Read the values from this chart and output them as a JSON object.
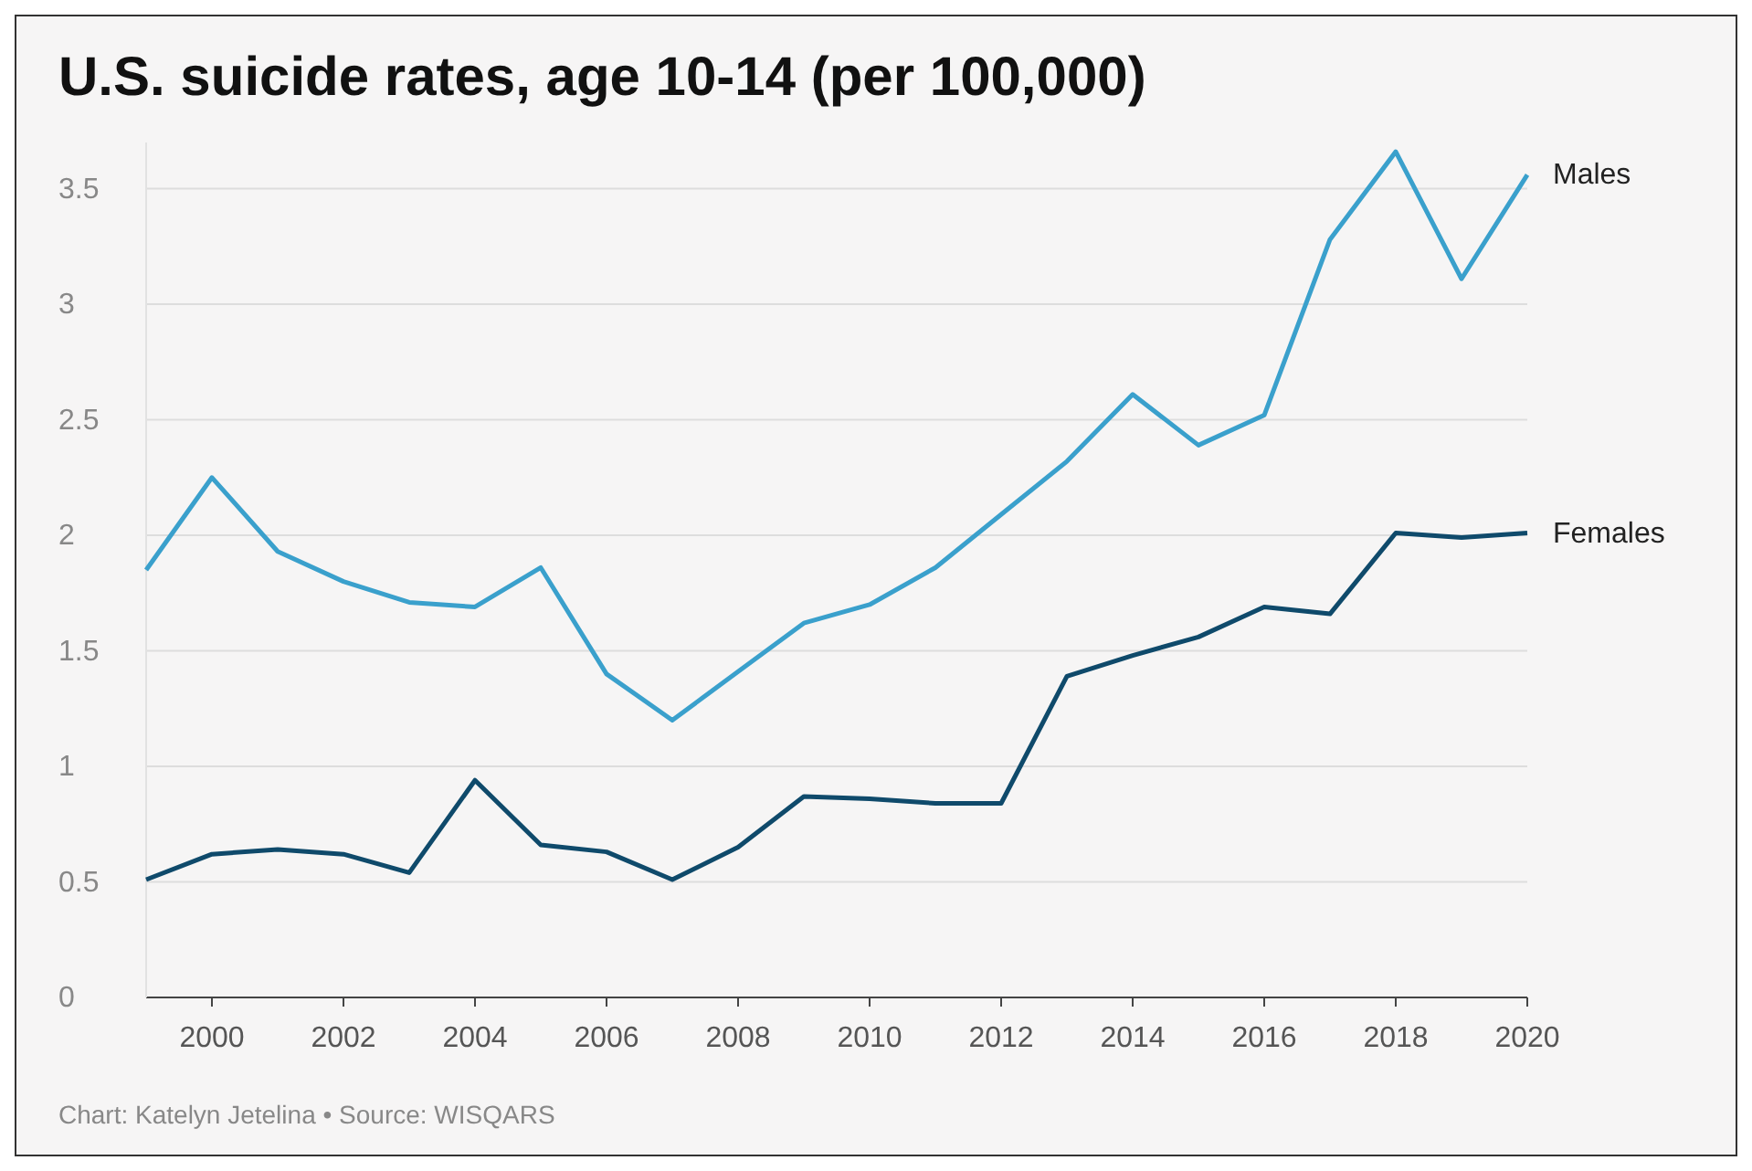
{
  "chart_data": {
    "type": "line",
    "title": "U.S. suicide rates, age 10-14 (per 100,000)",
    "x": [
      1999,
      2000,
      2001,
      2002,
      2003,
      2004,
      2005,
      2006,
      2007,
      2008,
      2009,
      2010,
      2011,
      2012,
      2013,
      2014,
      2015,
      2016,
      2017,
      2018,
      2019,
      2020
    ],
    "series": [
      {
        "name": "Males",
        "color": "#3aa0cc",
        "values": [
          1.85,
          2.25,
          1.93,
          1.8,
          1.71,
          1.69,
          1.86,
          1.4,
          1.2,
          1.41,
          1.62,
          1.7,
          1.86,
          2.09,
          2.32,
          2.61,
          2.39,
          2.52,
          3.28,
          3.66,
          3.11,
          3.56
        ]
      },
      {
        "name": "Females",
        "color": "#0f4a6b",
        "values": [
          0.51,
          0.62,
          0.64,
          0.62,
          0.54,
          0.94,
          0.66,
          0.63,
          0.51,
          0.65,
          0.87,
          0.86,
          0.84,
          0.84,
          1.39,
          1.48,
          1.56,
          1.69,
          1.66,
          2.01,
          1.99,
          2.01
        ]
      }
    ],
    "xlim": [
      1999,
      2020
    ],
    "xticks": [
      2000,
      2002,
      2004,
      2006,
      2008,
      2010,
      2012,
      2014,
      2016,
      2018,
      2020
    ],
    "ylim": [
      0,
      3.7
    ],
    "yticks": [
      0,
      0.5,
      1,
      1.5,
      2,
      2.5,
      3,
      3.5
    ],
    "grid": "y",
    "legend": false,
    "marker": "none",
    "line_style": "solid",
    "annotations": [
      "Chart: Katelyn Jetelina • Source: WISQARS"
    ]
  }
}
